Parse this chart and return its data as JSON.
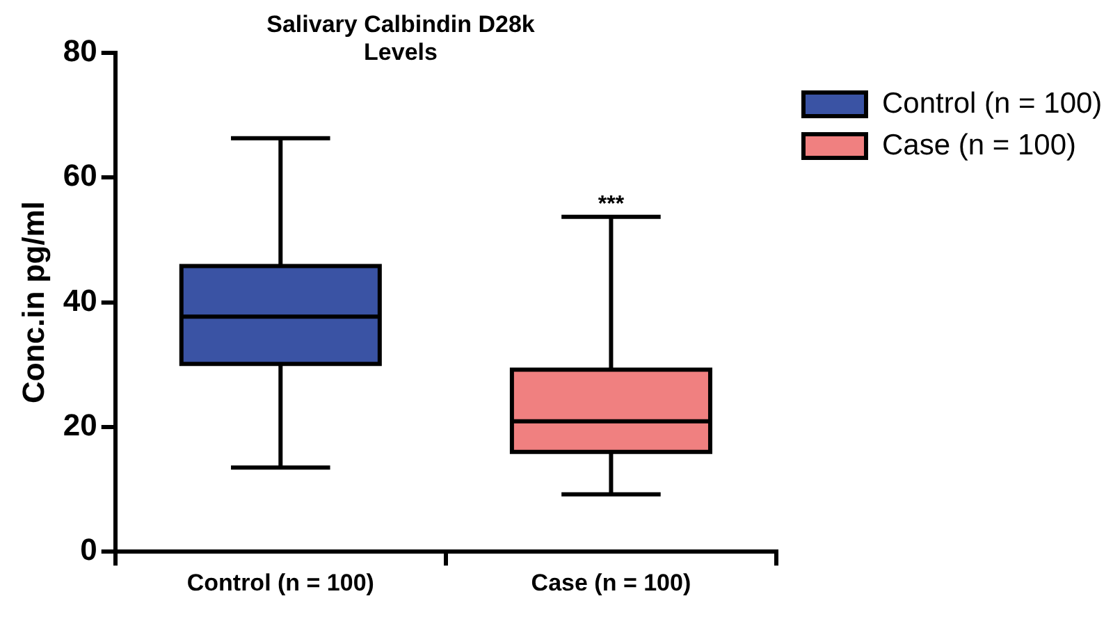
{
  "chart_data": {
    "type": "box",
    "title": "Salivary Calbindin D28k Levels",
    "ylabel": "Conc.in pg/ml",
    "categories": [
      "Control (n = 100)",
      "Case (n = 100)"
    ],
    "series": [
      {
        "name": "Control (n = 100)",
        "color": "#3a53a4",
        "boxes": [
          {
            "low": 13.5,
            "q1": 30.1,
            "median": 37.7,
            "q3": 45.8,
            "high": 66.3
          },
          null
        ]
      },
      {
        "name": "Case (n = 100)",
        "color": "#f08080",
        "boxes": [
          null,
          {
            "low": 9.2,
            "q1": 16.0,
            "median": 20.9,
            "q3": 29.2,
            "high": 53.7
          }
        ]
      }
    ],
    "ylim": [
      0,
      80
    ],
    "yticks": [
      0,
      20,
      40,
      60,
      80
    ],
    "grid": false,
    "legend": "right",
    "annotations": [
      {
        "text": "***",
        "x": "Case (n = 100)",
        "y": 53.7
      }
    ]
  }
}
